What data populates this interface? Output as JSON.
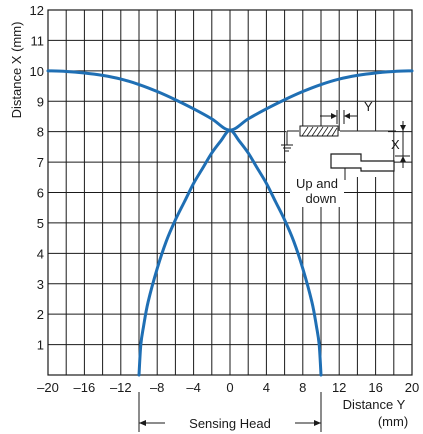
{
  "chart_data": {
    "type": "line",
    "title": "",
    "xlabel": "Distance Y (mm)",
    "xlabel_lines": [
      "Distance Y",
      "(mm)"
    ],
    "ylabel": "Distance X (mm)",
    "xlim": [
      -20,
      20
    ],
    "ylim": [
      0,
      12
    ],
    "xticks": [
      -20,
      -16,
      -12,
      -8,
      -4,
      0,
      4,
      8,
      12,
      16,
      20
    ],
    "xtick_labels": [
      "–20",
      "–16",
      "–12",
      "–8",
      "–4",
      "0",
      "4",
      "8",
      "12",
      "16",
      "20"
    ],
    "yticks": [
      1,
      2,
      3,
      4,
      5,
      6,
      7,
      8,
      9,
      10,
      11,
      12
    ],
    "grid": true,
    "series_color": "#1f6fb4",
    "series": [
      {
        "x": [
          -10,
          -9.8,
          -9.5,
          -9,
          -8,
          -7,
          -6,
          -5,
          -4,
          -3,
          -2,
          -1,
          0,
          1,
          2,
          3,
          4,
          5,
          6,
          7,
          8,
          9,
          9.5,
          9.8,
          10
        ],
        "y": [
          0.0,
          1.0,
          1.6,
          2.4,
          3.5,
          4.4,
          5.1,
          5.7,
          6.3,
          6.8,
          7.3,
          7.7,
          8.05,
          7.7,
          7.3,
          6.8,
          6.3,
          5.7,
          5.1,
          4.4,
          3.5,
          2.4,
          1.6,
          1.0,
          0.0
        ]
      },
      {
        "x": [
          -20,
          -18,
          -16,
          -14,
          -12,
          -10,
          -8,
          -6,
          -4,
          -2,
          0,
          2,
          4,
          6,
          8,
          10,
          12,
          14,
          16,
          18,
          20
        ],
        "y": [
          10.0,
          9.98,
          9.93,
          9.85,
          9.73,
          9.55,
          9.32,
          9.05,
          8.75,
          8.42,
          8.05,
          8.42,
          8.75,
          9.05,
          9.32,
          9.55,
          9.73,
          9.85,
          9.93,
          9.98,
          10.0
        ]
      }
    ],
    "annotations": {
      "sensing_head": "Sensing Head",
      "sensing_head_span": [
        -10,
        10
      ],
      "inset_y": "Y",
      "inset_x": "X",
      "inset_updown": [
        "Up and",
        "down"
      ]
    }
  }
}
